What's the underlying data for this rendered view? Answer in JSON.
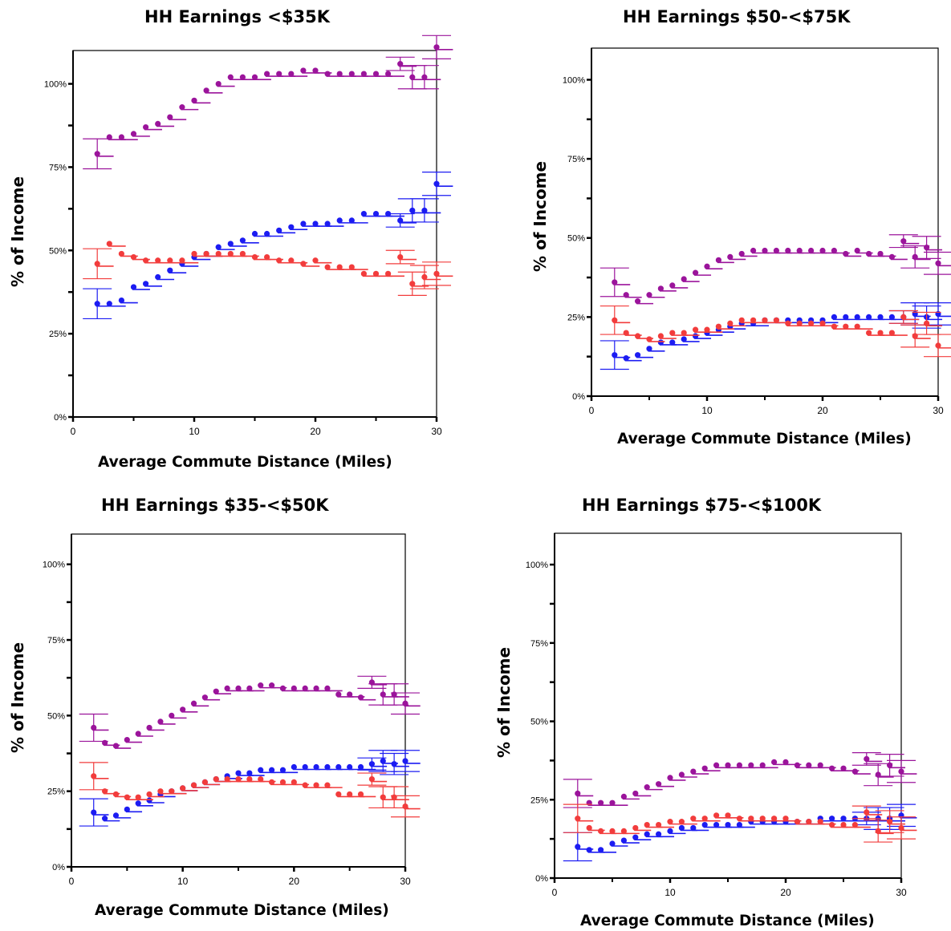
{
  "colors": {
    "purple": "#9b149b",
    "blue": "#1c1cf2",
    "red": "#f23c3c"
  },
  "chart_data": [
    {
      "type": "scatter",
      "title": "HH Earnings <$35K",
      "xlabel": "Average Commute Distance (Miles)",
      "ylabel": "% of Income",
      "xlim": [
        0,
        30
      ],
      "ylim": [
        0,
        1.1
      ],
      "xticks": [
        0,
        10,
        20,
        30
      ],
      "yticks": [
        0,
        0.25,
        0.5,
        0.75,
        1.0
      ],
      "ytick_labels": [
        "0%",
        "25%",
        "50%",
        "75%",
        "100%"
      ],
      "grid": false,
      "x": [
        2,
        3,
        4,
        5,
        6,
        7,
        8,
        9,
        10,
        11,
        12,
        13,
        14,
        15,
        16,
        17,
        18,
        19,
        20,
        21,
        22,
        23,
        24,
        25,
        26,
        27,
        28,
        29,
        30
      ],
      "series": [
        {
          "color": "purple",
          "values": [
            0.79,
            0.84,
            0.84,
            0.85,
            0.87,
            0.88,
            0.9,
            0.93,
            0.95,
            0.98,
            1.0,
            1.02,
            1.02,
            1.02,
            1.03,
            1.03,
            1.03,
            1.04,
            1.04,
            1.03,
            1.03,
            1.03,
            1.03,
            1.03,
            1.03,
            1.06,
            1.02,
            1.02,
            1.11
          ]
        },
        {
          "color": "blue",
          "values": [
            0.34,
            0.34,
            0.35,
            0.39,
            0.4,
            0.42,
            0.44,
            0.46,
            0.48,
            0.49,
            0.51,
            0.52,
            0.53,
            0.55,
            0.55,
            0.56,
            0.57,
            0.58,
            0.58,
            0.58,
            0.59,
            0.59,
            0.61,
            0.61,
            0.61,
            0.59,
            0.62,
            0.62,
            0.7
          ]
        },
        {
          "color": "red",
          "values": [
            0.46,
            0.52,
            0.49,
            0.48,
            0.47,
            0.47,
            0.47,
            0.47,
            0.49,
            0.49,
            0.49,
            0.49,
            0.49,
            0.48,
            0.48,
            0.47,
            0.47,
            0.46,
            0.47,
            0.45,
            0.45,
            0.45,
            0.43,
            0.43,
            0.43,
            0.48,
            0.4,
            0.42,
            0.43
          ]
        }
      ]
    },
    {
      "type": "scatter",
      "title": "HH Earnings $50-<$75K",
      "xlabel": "Average Commute Distance (Miles)",
      "ylabel": "% of Income",
      "xlim": [
        0,
        30
      ],
      "ylim": [
        0,
        1.1
      ],
      "xticks": [
        0,
        10,
        20,
        30
      ],
      "yticks": [
        0,
        0.25,
        0.5,
        0.75,
        1.0
      ],
      "ytick_labels": [
        "0%",
        "25%",
        "50%",
        "75%",
        "100%"
      ],
      "grid": false,
      "x": [
        2,
        3,
        4,
        5,
        6,
        7,
        8,
        9,
        10,
        11,
        12,
        13,
        14,
        15,
        16,
        17,
        18,
        19,
        20,
        21,
        22,
        23,
        24,
        25,
        26,
        27,
        28,
        29,
        30
      ],
      "series": [
        {
          "color": "purple",
          "values": [
            0.36,
            0.32,
            0.3,
            0.32,
            0.34,
            0.35,
            0.37,
            0.39,
            0.41,
            0.43,
            0.44,
            0.45,
            0.46,
            0.46,
            0.46,
            0.46,
            0.46,
            0.46,
            0.46,
            0.46,
            0.45,
            0.46,
            0.45,
            0.45,
            0.44,
            0.49,
            0.44,
            0.47,
            0.42
          ]
        },
        {
          "color": "blue",
          "values": [
            0.13,
            0.12,
            0.13,
            0.15,
            0.17,
            0.17,
            0.18,
            0.19,
            0.2,
            0.21,
            0.22,
            0.23,
            0.23,
            0.24,
            0.24,
            0.24,
            0.24,
            0.24,
            0.24,
            0.25,
            0.25,
            0.25,
            0.25,
            0.25,
            0.25,
            0.25,
            0.26,
            0.25,
            0.26
          ]
        },
        {
          "color": "red",
          "values": [
            0.24,
            0.2,
            0.19,
            0.18,
            0.19,
            0.2,
            0.2,
            0.21,
            0.21,
            0.22,
            0.23,
            0.24,
            0.24,
            0.24,
            0.24,
            0.23,
            0.23,
            0.23,
            0.23,
            0.22,
            0.22,
            0.22,
            0.2,
            0.2,
            0.2,
            0.25,
            0.19,
            0.23,
            0.16
          ]
        }
      ]
    },
    {
      "type": "scatter",
      "title": "HH Earnings $35-<$50K",
      "xlabel": "Average Commute Distance (Miles)",
      "ylabel": "% of Income",
      "xlim": [
        0,
        30
      ],
      "ylim": [
        0,
        1.1
      ],
      "xticks": [
        0,
        10,
        20,
        30
      ],
      "yticks": [
        0,
        0.25,
        0.5,
        0.75,
        1.0
      ],
      "ytick_labels": [
        "0%",
        "25%",
        "50%",
        "75%",
        "100%"
      ],
      "grid": false,
      "x": [
        2,
        3,
        4,
        5,
        6,
        7,
        8,
        9,
        10,
        11,
        12,
        13,
        14,
        15,
        16,
        17,
        18,
        19,
        20,
        21,
        22,
        23,
        24,
        25,
        26,
        27,
        28,
        29,
        30
      ],
      "series": [
        {
          "color": "purple",
          "values": [
            0.46,
            0.41,
            0.4,
            0.42,
            0.44,
            0.46,
            0.48,
            0.5,
            0.52,
            0.54,
            0.56,
            0.58,
            0.59,
            0.59,
            0.59,
            0.6,
            0.6,
            0.59,
            0.59,
            0.59,
            0.59,
            0.59,
            0.57,
            0.57,
            0.56,
            0.61,
            0.57,
            0.57,
            0.54
          ]
        },
        {
          "color": "blue",
          "values": [
            0.18,
            0.16,
            0.17,
            0.19,
            0.21,
            0.22,
            0.24,
            0.25,
            0.26,
            0.27,
            0.28,
            0.29,
            0.3,
            0.31,
            0.31,
            0.32,
            0.32,
            0.32,
            0.33,
            0.33,
            0.33,
            0.33,
            0.33,
            0.33,
            0.33,
            0.34,
            0.35,
            0.34,
            0.35
          ]
        },
        {
          "color": "red",
          "values": [
            0.3,
            0.25,
            0.24,
            0.23,
            0.23,
            0.24,
            0.25,
            0.25,
            0.26,
            0.27,
            0.28,
            0.29,
            0.29,
            0.29,
            0.29,
            0.29,
            0.28,
            0.28,
            0.28,
            0.27,
            0.27,
            0.27,
            0.24,
            0.24,
            0.24,
            0.29,
            0.23,
            0.23,
            0.2
          ]
        }
      ]
    },
    {
      "type": "scatter",
      "title": "HH Earnings $75-<$100K",
      "xlabel": "Average Commute Distance (Miles)",
      "ylabel": "% of Income",
      "xlim": [
        0,
        30
      ],
      "ylim": [
        0,
        1.1
      ],
      "xticks": [
        0,
        10,
        20,
        30
      ],
      "yticks": [
        0,
        0.25,
        0.5,
        0.75,
        1.0
      ],
      "ytick_labels": [
        "0%",
        "25%",
        "50%",
        "75%",
        "100%"
      ],
      "grid": false,
      "x": [
        2,
        3,
        4,
        5,
        6,
        7,
        8,
        9,
        10,
        11,
        12,
        13,
        14,
        15,
        16,
        17,
        18,
        19,
        20,
        21,
        22,
        23,
        24,
        25,
        26,
        27,
        28,
        29,
        30
      ],
      "series": [
        {
          "color": "purple",
          "values": [
            0.27,
            0.24,
            0.24,
            0.24,
            0.26,
            0.27,
            0.29,
            0.3,
            0.32,
            0.33,
            0.34,
            0.35,
            0.36,
            0.36,
            0.36,
            0.36,
            0.36,
            0.37,
            0.37,
            0.36,
            0.36,
            0.36,
            0.35,
            0.35,
            0.34,
            0.38,
            0.33,
            0.36,
            0.34
          ]
        },
        {
          "color": "blue",
          "values": [
            0.1,
            0.09,
            0.09,
            0.11,
            0.12,
            0.13,
            0.14,
            0.14,
            0.15,
            0.16,
            0.16,
            0.17,
            0.17,
            0.17,
            0.17,
            0.18,
            0.18,
            0.18,
            0.18,
            0.18,
            0.18,
            0.19,
            0.19,
            0.19,
            0.19,
            0.19,
            0.19,
            0.19,
            0.2
          ]
        },
        {
          "color": "red",
          "values": [
            0.19,
            0.16,
            0.15,
            0.15,
            0.15,
            0.16,
            0.17,
            0.17,
            0.18,
            0.18,
            0.19,
            0.19,
            0.2,
            0.2,
            0.19,
            0.19,
            0.19,
            0.19,
            0.19,
            0.18,
            0.18,
            0.18,
            0.17,
            0.17,
            0.17,
            0.21,
            0.15,
            0.18,
            0.16
          ]
        }
      ]
    }
  ]
}
